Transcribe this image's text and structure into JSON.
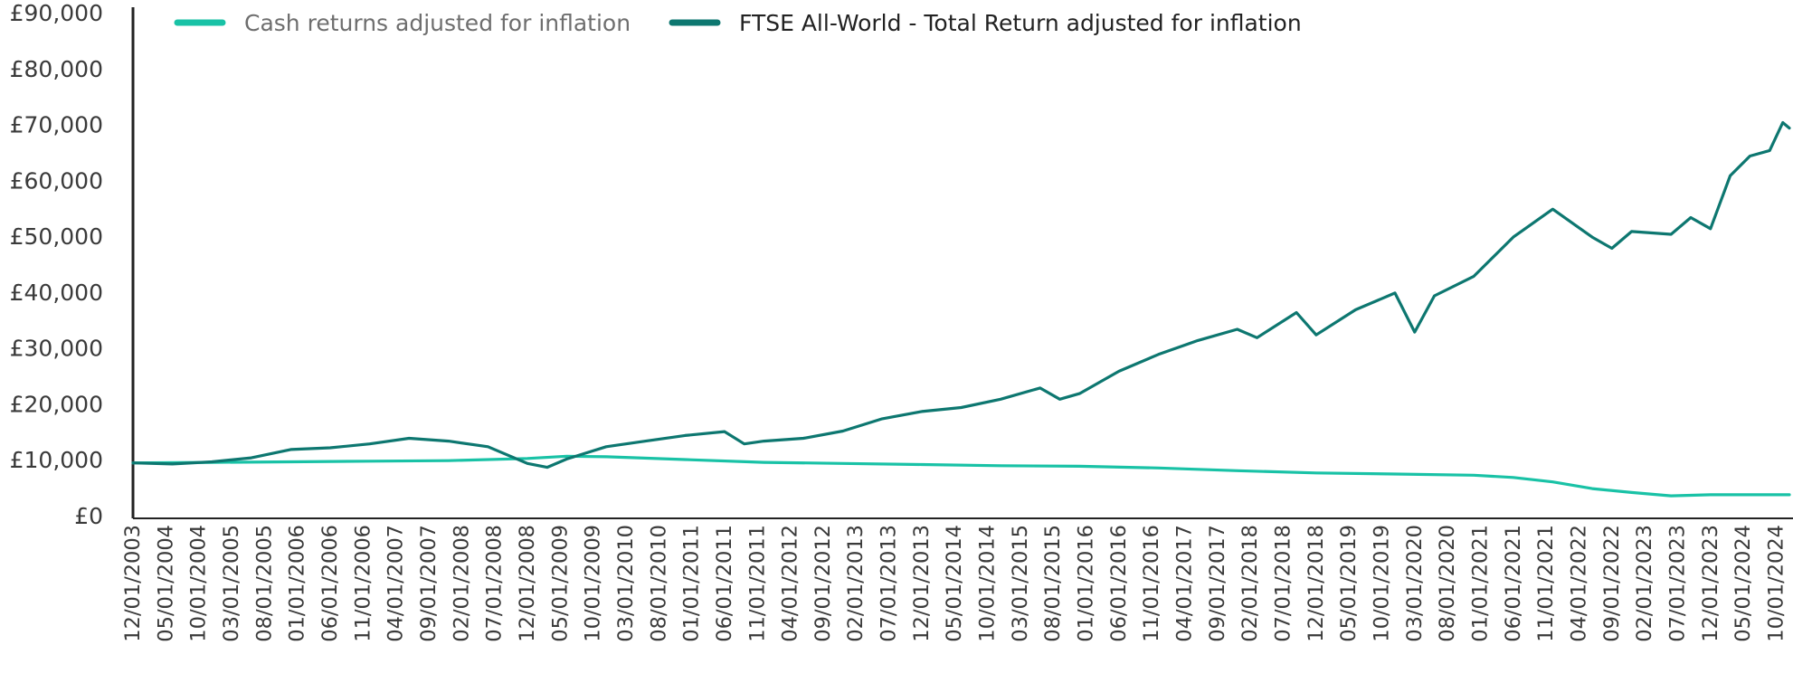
{
  "chart_data": {
    "type": "line",
    "y_axis": {
      "range": [
        0,
        90000
      ],
      "ticks": [
        0,
        10000,
        20000,
        30000,
        40000,
        50000,
        60000,
        70000,
        80000,
        90000
      ],
      "tick_labels": [
        "£0",
        "£10,000",
        "£20,000",
        "£30,000",
        "£40,000",
        "£50,000",
        "£60,000",
        "£70,000",
        "£80,000",
        "£90,000"
      ]
    },
    "x_axis": {
      "range": [
        "12/01/2003",
        "12/01/2024"
      ],
      "tick_labels": [
        "12/01/2003",
        "05/01/2004",
        "10/01/2004",
        "03/01/2005",
        "08/01/2005",
        "01/01/2006",
        "06/01/2006",
        "11/01/2006",
        "04/01/2007",
        "09/01/2007",
        "02/01/2008",
        "07/01/2008",
        "12/01/2008",
        "05/01/2009",
        "10/01/2009",
        "03/01/2010",
        "08/01/2010",
        "01/01/2011",
        "06/01/2011",
        "11/01/2011",
        "04/01/2012",
        "09/01/2012",
        "02/01/2013",
        "07/01/2013",
        "12/01/2013",
        "05/01/2014",
        "10/01/2014",
        "03/01/2015",
        "08/01/2015",
        "01/01/2016",
        "06/01/2016",
        "11/01/2016",
        "04/01/2017",
        "09/01/2017",
        "02/01/2018",
        "07/01/2018",
        "12/01/2018",
        "05/01/2019",
        "10/01/2019",
        "03/01/2020",
        "08/01/2020",
        "01/01/2021",
        "06/01/2021",
        "11/01/2021",
        "04/01/2022",
        "09/01/2022",
        "02/01/2023",
        "07/01/2023",
        "12/01/2023",
        "05/01/2024",
        "10/01/2024"
      ]
    },
    "grid": false,
    "legend_position": "top",
    "series": [
      {
        "name": "Cash returns adjusted for inflation",
        "color": "#19c2a6",
        "points": [
          [
            "12/01/2003",
            9600
          ],
          [
            "12/01/2004",
            9700
          ],
          [
            "12/01/2005",
            9800
          ],
          [
            "12/01/2006",
            9900
          ],
          [
            "12/01/2007",
            10000
          ],
          [
            "12/01/2008",
            10400
          ],
          [
            "06/01/2009",
            10800
          ],
          [
            "12/01/2009",
            10700
          ],
          [
            "12/01/2010",
            10200
          ],
          [
            "12/01/2011",
            9700
          ],
          [
            "12/01/2012",
            9500
          ],
          [
            "12/01/2013",
            9300
          ],
          [
            "12/01/2014",
            9100
          ],
          [
            "12/01/2015",
            9000
          ],
          [
            "12/01/2016",
            8700
          ],
          [
            "12/01/2017",
            8200
          ],
          [
            "12/01/2018",
            7800
          ],
          [
            "12/01/2019",
            7600
          ],
          [
            "12/01/2020",
            7400
          ],
          [
            "06/01/2021",
            7000
          ],
          [
            "12/01/2021",
            6200
          ],
          [
            "06/01/2022",
            5000
          ],
          [
            "12/01/2022",
            4300
          ],
          [
            "06/01/2023",
            3700
          ],
          [
            "12/01/2023",
            3900
          ],
          [
            "12/01/2024",
            3900
          ]
        ]
      },
      {
        "name": "FTSE All-World - Total Return adjusted for inflation",
        "color": "#0d7770",
        "points": [
          [
            "12/01/2003",
            9600
          ],
          [
            "06/01/2004",
            9400
          ],
          [
            "12/01/2004",
            9800
          ],
          [
            "06/01/2005",
            10500
          ],
          [
            "12/01/2005",
            12000
          ],
          [
            "06/01/2006",
            12300
          ],
          [
            "12/01/2006",
            13000
          ],
          [
            "06/01/2007",
            14000
          ],
          [
            "12/01/2007",
            13500
          ],
          [
            "06/01/2008",
            12500
          ],
          [
            "12/01/2008",
            9500
          ],
          [
            "03/01/2009",
            8800
          ],
          [
            "06/01/2009",
            10300
          ],
          [
            "12/01/2009",
            12500
          ],
          [
            "06/01/2010",
            13500
          ],
          [
            "12/01/2010",
            14500
          ],
          [
            "06/01/2011",
            15200
          ],
          [
            "09/01/2011",
            13000
          ],
          [
            "12/01/2011",
            13500
          ],
          [
            "06/01/2012",
            14000
          ],
          [
            "12/01/2012",
            15300
          ],
          [
            "06/01/2013",
            17500
          ],
          [
            "12/01/2013",
            18800
          ],
          [
            "06/01/2014",
            19500
          ],
          [
            "12/01/2014",
            21000
          ],
          [
            "06/01/2015",
            23000
          ],
          [
            "09/01/2015",
            21000
          ],
          [
            "12/01/2015",
            22000
          ],
          [
            "06/01/2016",
            26000
          ],
          [
            "12/01/2016",
            29000
          ],
          [
            "06/01/2017",
            31500
          ],
          [
            "12/01/2017",
            33500
          ],
          [
            "03/01/2018",
            32000
          ],
          [
            "09/01/2018",
            36500
          ],
          [
            "12/01/2018",
            32500
          ],
          [
            "06/01/2019",
            37000
          ],
          [
            "12/01/2019",
            40000
          ],
          [
            "03/01/2020",
            33000
          ],
          [
            "06/01/2020",
            39500
          ],
          [
            "12/01/2020",
            43000
          ],
          [
            "06/01/2021",
            50000
          ],
          [
            "12/01/2021",
            55000
          ],
          [
            "06/01/2022",
            50000
          ],
          [
            "09/01/2022",
            48000
          ],
          [
            "12/01/2022",
            51000
          ],
          [
            "06/01/2023",
            50500
          ],
          [
            "09/01/2023",
            53500
          ],
          [
            "12/01/2023",
            51500
          ],
          [
            "03/01/2024",
            61000
          ],
          [
            "06/01/2024",
            64500
          ],
          [
            "09/01/2024",
            65500
          ],
          [
            "11/01/2024",
            70500
          ],
          [
            "12/01/2024",
            69500
          ]
        ]
      }
    ]
  }
}
